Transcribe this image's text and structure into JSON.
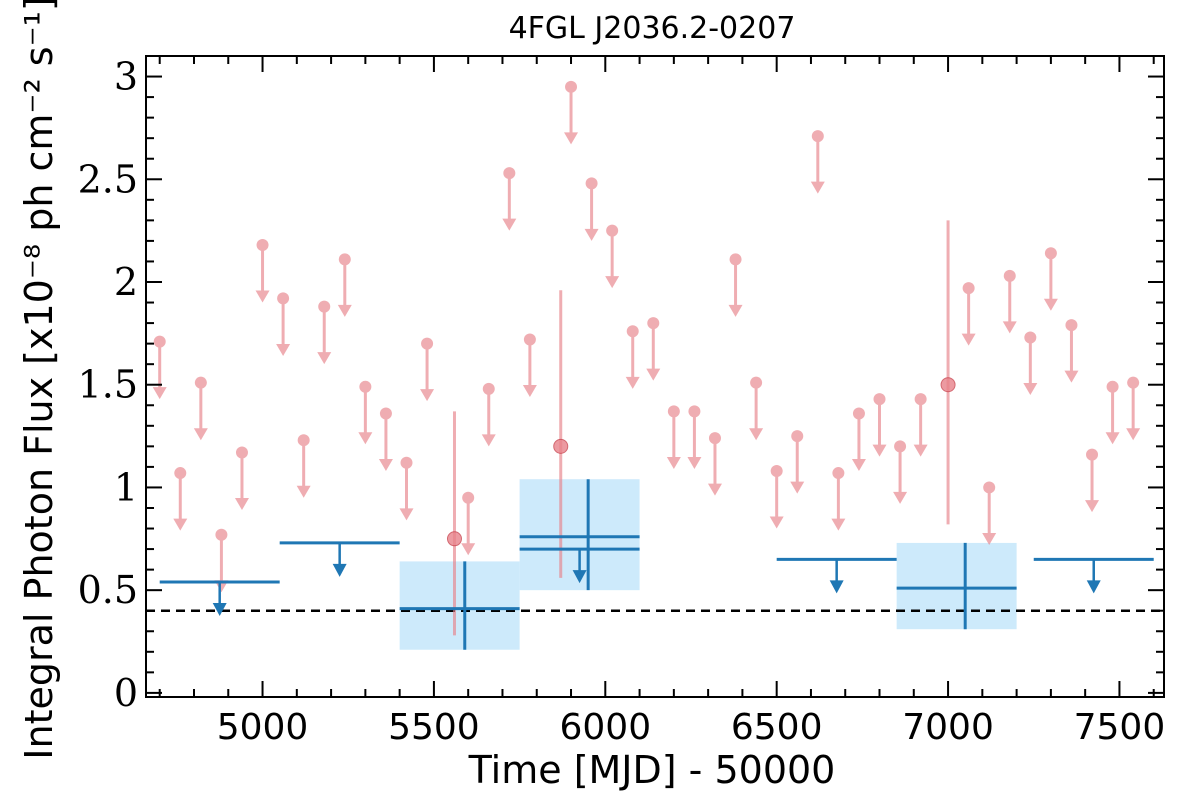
{
  "chart_data": {
    "type": "scatter",
    "title": "4FGL J2036.2-0207",
    "xlabel": "Time [MJD] - 50000",
    "ylabel": "Integral Photon Flux [x10⁻⁸ ph cm⁻² s⁻¹]",
    "xlim": [
      4660,
      7630
    ],
    "ylim": [
      -0.02,
      3.1
    ],
    "x_ticks": [
      5000,
      5500,
      6000,
      6500,
      7000,
      7500
    ],
    "x_tick_labels": [
      "5000",
      "5500",
      "6000",
      "6500",
      "7000",
      "7500"
    ],
    "y_ticks": [
      0,
      0.5,
      1,
      1.5,
      2,
      2.5,
      3
    ],
    "y_tick_labels": [
      "0",
      "0.5",
      "1",
      "1.5",
      "2",
      "2.5",
      "3"
    ],
    "grid": false,
    "reference_line": {
      "y": 0.4,
      "style": "dashed",
      "color": "#000000"
    },
    "colors": {
      "short_bins": "#e8828a",
      "long_bins": "#1f77b4",
      "error_box": "#cdeafb",
      "reference": "#000000"
    },
    "series": [
      {
        "kind": "short_bin_upper_limits",
        "x": [
          4700,
          4760,
          4820,
          4880,
          4940,
          5000,
          5060,
          5120,
          5180,
          5240,
          5300,
          5360,
          5420,
          5480,
          5600,
          5660,
          5720,
          5780,
          5900,
          5960,
          6020,
          6080,
          6140,
          6200,
          6260,
          6320,
          6380,
          6440,
          6500,
          6560,
          6620,
          6680,
          6740,
          6800,
          6860,
          6920,
          7060,
          7120,
          7180,
          7240,
          7300,
          7360,
          7420,
          7480,
          7540
        ],
        "values": [
          1.71,
          1.07,
          1.51,
          0.77,
          1.17,
          2.18,
          1.92,
          1.23,
          1.88,
          2.11,
          1.49,
          1.36,
          1.12,
          1.7,
          0.95,
          1.48,
          2.53,
          1.72,
          2.95,
          2.48,
          2.25,
          1.76,
          1.8,
          1.37,
          1.37,
          1.24,
          2.11,
          1.51,
          1.08,
          1.25,
          2.71,
          1.07,
          1.36,
          1.43,
          1.2,
          1.43,
          1.97,
          1.0,
          2.03,
          1.73,
          2.14,
          1.79,
          1.16,
          1.49,
          1.51
        ]
      },
      {
        "kind": "short_bin_detections",
        "x": [
          5560,
          5870,
          7000
        ],
        "values": [
          0.75,
          1.2,
          1.5
        ],
        "err_low": [
          0.47,
          0.64,
          0.68
        ],
        "err_high": [
          0.62,
          0.76,
          0.8
        ]
      },
      {
        "kind": "long_bin_upper_limits",
        "x_start": [
          4700,
          5050,
          5750,
          6500,
          7250
        ],
        "x_end": [
          5050,
          5400,
          6100,
          6850,
          7600
        ],
        "values": [
          0.54,
          0.73,
          0.7,
          0.65,
          0.65
        ]
      },
      {
        "kind": "long_bin_detections",
        "x_start": [
          5400,
          5750,
          6850
        ],
        "x_end": [
          5750,
          6100,
          7200
        ],
        "x_center": [
          5590,
          5950,
          7050
        ],
        "values": [
          0.41,
          0.76,
          0.51
        ],
        "err_low": [
          0.2,
          0.26,
          0.2
        ],
        "err_high": [
          0.23,
          0.28,
          0.22
        ]
      }
    ]
  }
}
